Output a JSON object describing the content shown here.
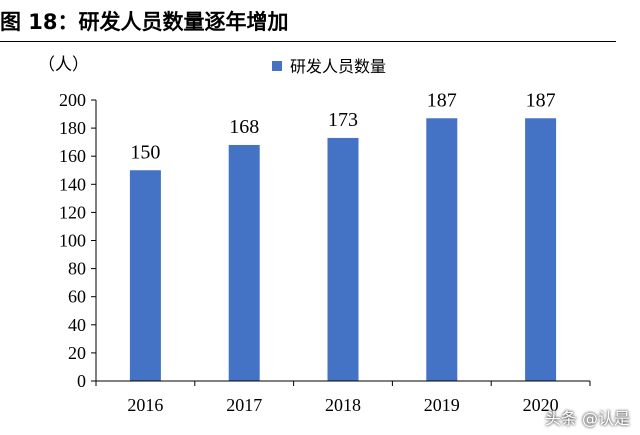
{
  "figure_title": "图 18：研发人员数量逐年增加",
  "watermark": "头条 @认是",
  "colors": {
    "bar": "#4472C4",
    "axis": "#000000"
  },
  "chart_data": {
    "type": "bar",
    "title": "",
    "unit": "（人）",
    "categories": [
      "2016",
      "2017",
      "2018",
      "2019",
      "2020"
    ],
    "series": [
      {
        "name": "研发人员数量",
        "values": [
          150,
          168,
          173,
          187,
          187
        ]
      }
    ],
    "data_labels": [
      "150",
      "168",
      "173",
      "187",
      "187"
    ],
    "ylim": [
      0,
      200
    ],
    "yticks": [
      0,
      20,
      40,
      60,
      80,
      100,
      120,
      140,
      160,
      180,
      200
    ],
    "grid": false,
    "legend": "top-center"
  }
}
